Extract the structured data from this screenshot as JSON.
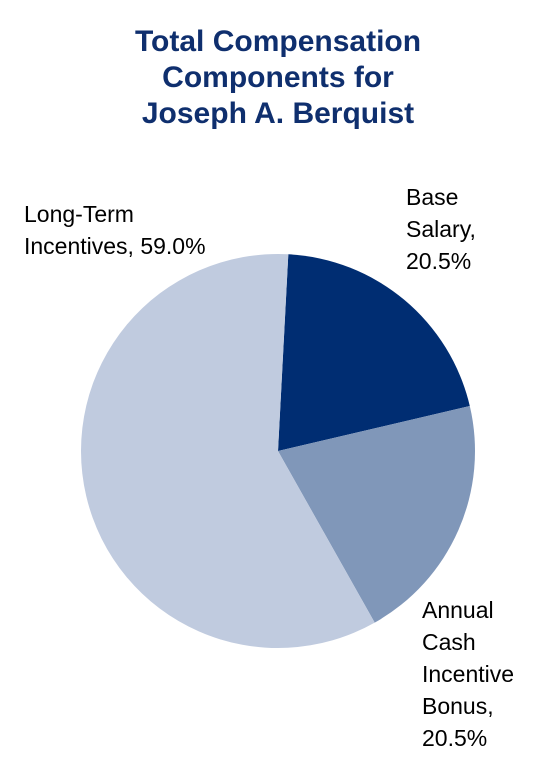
{
  "chart_data": {
    "type": "pie",
    "title_lines": [
      "Total Compensation",
      "Components for",
      "Joseph A. Berquist"
    ],
    "categories": [
      "Base Salary",
      "Annual Cash Incentive Bonus",
      "Long-Term Incentives"
    ],
    "values": [
      20.5,
      20.5,
      59.0
    ],
    "unit": "%",
    "colors": [
      "#002d72",
      "#8097b9",
      "#c0cbdf"
    ],
    "labels": {
      "long_term": [
        "Long-Term",
        "Incentives, 59.0%"
      ],
      "base": [
        "Base",
        "Salary,",
        "20.5%"
      ],
      "annual": [
        "Annual",
        "Cash",
        "Incentive",
        "Bonus,",
        "20.5%"
      ]
    }
  }
}
